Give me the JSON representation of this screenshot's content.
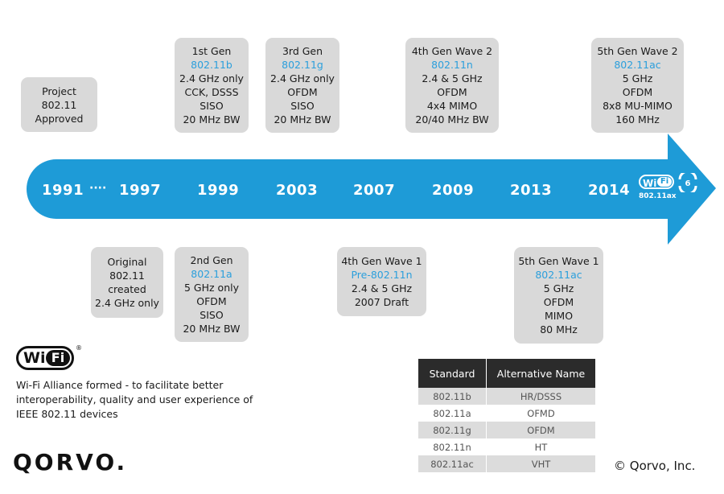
{
  "timeline": {
    "years": [
      "1991",
      "1997",
      "1999",
      "2003",
      "2007",
      "2009",
      "2013",
      "2014"
    ],
    "ellipsis": "····",
    "wifi6_badge": {
      "word": "Wi",
      "fi": "Fi",
      "six": "6",
      "label": "802.11ax"
    },
    "arrow_color": "#1e9bd7"
  },
  "top_boxes": [
    {
      "lines": [
        "Project",
        "802.11",
        "Approved"
      ]
    },
    {
      "line1": "1st Gen",
      "std": "802.11b",
      "rest": [
        "2.4 GHz only",
        "CCK, DSSS",
        "SISO",
        "20 MHz BW"
      ]
    },
    {
      "line1": "3rd Gen",
      "std": "802.11g",
      "rest": [
        "2.4 GHz only",
        "OFDM",
        "SISO",
        "20 MHz BW"
      ]
    },
    {
      "line1": "4th Gen Wave 2",
      "std": "802.11n",
      "rest": [
        "2.4 & 5 GHz",
        "OFDM",
        "4x4 MIMO",
        "20/40 MHz BW"
      ]
    },
    {
      "line1": "5th Gen Wave 2",
      "std": "802.11ac",
      "rest": [
        "5 GHz",
        "OFDM",
        "8x8 MU-MIMO",
        "160 MHz"
      ]
    }
  ],
  "bottom_boxes": [
    {
      "lines": [
        "Original",
        "802.11",
        "created",
        "2.4 GHz only"
      ]
    },
    {
      "line1": "2nd Gen",
      "std": "802.11a",
      "rest": [
        "5 GHz only",
        "OFDM",
        "SISO",
        "20 MHz BW"
      ]
    },
    {
      "line1": "4th Gen Wave 1",
      "std": "Pre-802.11n",
      "rest": [
        "2.4 & 5 GHz",
        "2007 Draft"
      ]
    },
    {
      "line1": "5th Gen Wave 1",
      "std": "802.11ac",
      "rest": [
        "5 GHz",
        "OFDM",
        "MIMO",
        "80 MHz"
      ]
    }
  ],
  "wifi_alliance": {
    "logo_word": "Wi",
    "logo_fi": "Fi",
    "registered": "®",
    "text": "Wi-Fi Alliance formed - to facilitate better interoperability, quality and user experience of IEEE 802.11 devices"
  },
  "table": {
    "headers": [
      "Standard",
      "Alternative Name"
    ],
    "rows": [
      [
        "802.11b",
        "HR/DSSS"
      ],
      [
        "802.11a",
        "OFMD"
      ],
      [
        "802.11g",
        "OFDM"
      ],
      [
        "802.11n",
        "HT"
      ],
      [
        "802.11ac",
        "VHT"
      ]
    ]
  },
  "brand": {
    "logo": "QORVO.",
    "copyright": "© Qorvo, Inc."
  },
  "colors": {
    "accent": "#2b9fdc",
    "box": "#d9d9d9"
  }
}
